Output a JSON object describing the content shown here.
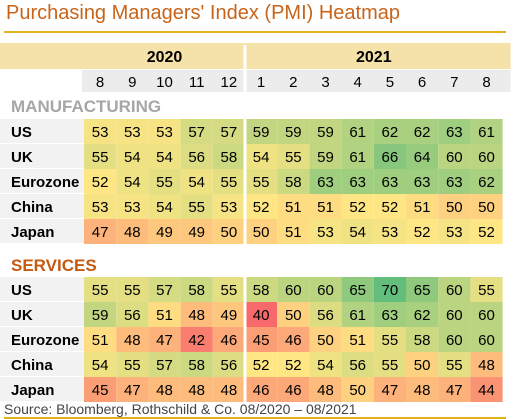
{
  "title": "Purchasing Managers' Index (PMI) Heatmap",
  "source": "Source: Bloomberg, Rothschild & Co. 08/2020 – 08/2021",
  "colors": {
    "title": "#c8641a",
    "rule": "#e3b21a",
    "manufacturing_header": "#a6a6a6",
    "services_header": "#c55a11",
    "year_band": "#f5e2a8",
    "month_band": "#ececec",
    "scale_low": "#f8696b",
    "scale_mid": "#ffe684",
    "scale_high": "#63be7b"
  },
  "chart_data": {
    "type": "heatmap",
    "years": [
      {
        "label": "2020",
        "months": [
          "8",
          "9",
          "10",
          "11",
          "12"
        ]
      },
      {
        "label": "2021",
        "months": [
          "1",
          "2",
          "3",
          "4",
          "5",
          "6",
          "7",
          "8"
        ]
      }
    ],
    "columns": [
      "8",
      "9",
      "10",
      "11",
      "12",
      "1",
      "2",
      "3",
      "4",
      "5",
      "6",
      "7",
      "8"
    ],
    "sections": [
      {
        "name": "MANUFACTURING",
        "rows": [
          {
            "label": "US",
            "values": [
              53,
              53,
              53,
              57,
              57,
              59,
              59,
              59,
              61,
              62,
              62,
              63,
              61
            ]
          },
          {
            "label": "UK",
            "values": [
              55,
              54,
              54,
              56,
              58,
              54,
              55,
              59,
              61,
              66,
              64,
              60,
              60
            ]
          },
          {
            "label": "Eurozone",
            "values": [
              52,
              54,
              55,
              54,
              55,
              55,
              58,
              63,
              63,
              63,
              63,
              63,
              62
            ]
          },
          {
            "label": "China",
            "values": [
              53,
              53,
              54,
              55,
              53,
              52,
              51,
              51,
              52,
              52,
              51,
              50,
              50
            ]
          },
          {
            "label": "Japan",
            "values": [
              47,
              48,
              49,
              49,
              50,
              50,
              51,
              53,
              54,
              53,
              52,
              53,
              52
            ]
          }
        ]
      },
      {
        "name": "SERVICES",
        "rows": [
          {
            "label": "US",
            "values": [
              55,
              55,
              57,
              58,
              55,
              58,
              60,
              60,
              65,
              70,
              65,
              60,
              55
            ]
          },
          {
            "label": "UK",
            "values": [
              59,
              56,
              51,
              48,
              49,
              40,
              50,
              56,
              61,
              63,
              62,
              60,
              60
            ]
          },
          {
            "label": "Eurozone",
            "values": [
              51,
              48,
              47,
              42,
              46,
              45,
              46,
              50,
              51,
              55,
              58,
              60,
              60
            ]
          },
          {
            "label": "China",
            "values": [
              54,
              55,
              57,
              58,
              56,
              52,
              52,
              54,
              56,
              55,
              50,
              55,
              48
            ]
          },
          {
            "label": "Japan",
            "values": [
              45,
              47,
              48,
              48,
              48,
              46,
              46,
              48,
              50,
              47,
              48,
              47,
              44
            ]
          }
        ]
      }
    ],
    "color_scale": {
      "min": 40,
      "mid": 52,
      "max": 70
    }
  }
}
